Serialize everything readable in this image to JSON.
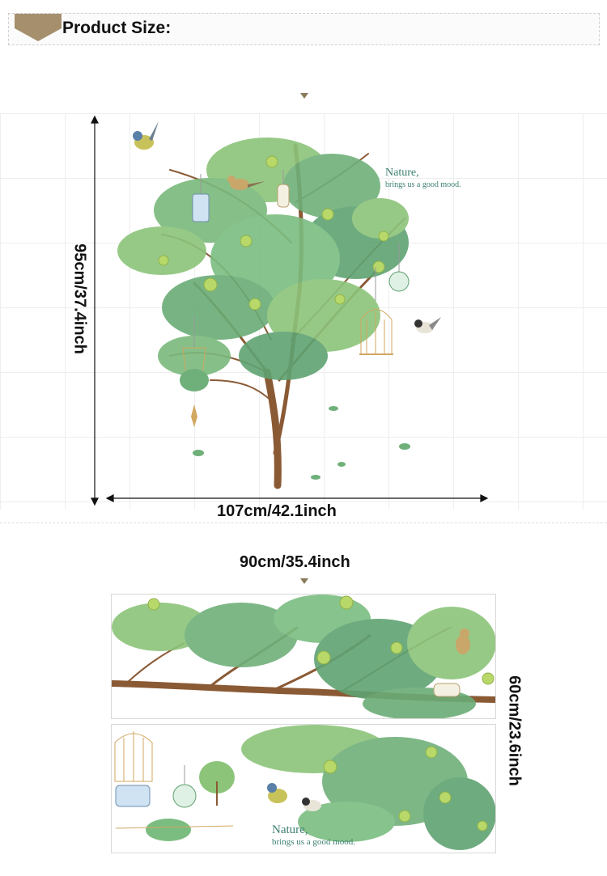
{
  "header": {
    "title": "Product Size:"
  },
  "tree_figure": {
    "height_label": "95cm/37.4inch",
    "width_label": "107cm/42.1inch",
    "quote_line1": "Nature,",
    "quote_line2": "brings us  a good mood."
  },
  "sheets_figure": {
    "width_label": "90cm/35.4inch",
    "height_label": "60cm/23.6inch",
    "quote_line1": "Nature,",
    "quote_line2": "brings us  a good mood."
  },
  "colors": {
    "badge": "#a58f6c",
    "leaf_dark": "#3f8f5a",
    "leaf_light": "#8cc47a",
    "trunk": "#8a5a35",
    "quote": "#3c7f72"
  }
}
